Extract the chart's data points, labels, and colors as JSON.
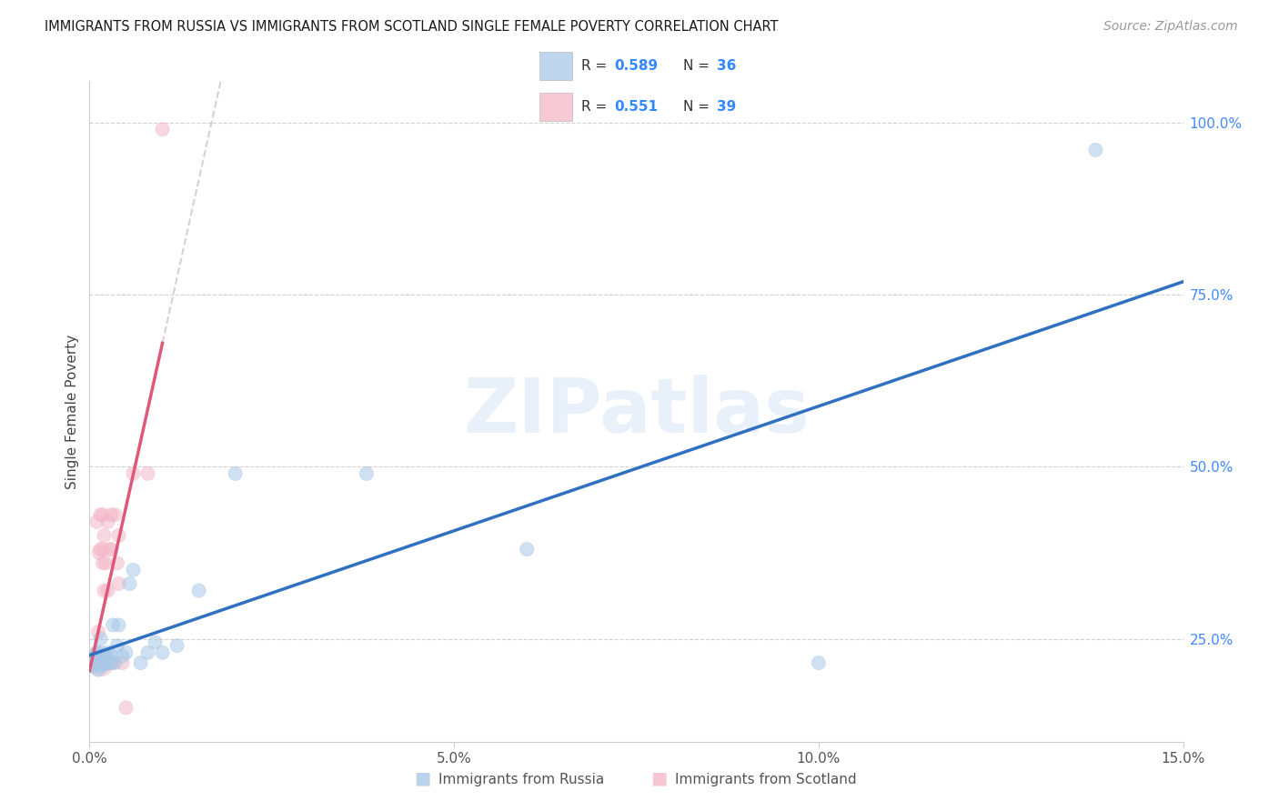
{
  "title": "IMMIGRANTS FROM RUSSIA VS IMMIGRANTS FROM SCOTLAND SINGLE FEMALE POVERTY CORRELATION CHART",
  "source": "Source: ZipAtlas.com",
  "ylabel": "Single Female Poverty",
  "xlim": [
    0.0,
    0.15
  ],
  "ylim": [
    0.1,
    1.06
  ],
  "russia_R": 0.589,
  "russia_N": 36,
  "scotland_R": 0.551,
  "scotland_N": 39,
  "russia_color": "#a8c8e8",
  "scotland_color": "#f4b8c8",
  "russia_line_color": "#3070c0",
  "scotland_line_color": "#e05878",
  "watermark": "ZIPatlas",
  "russia_x": [
    0.0005,
    0.0008,
    0.001,
    0.001,
    0.0012,
    0.0012,
    0.0015,
    0.0015,
    0.0015,
    0.0018,
    0.002,
    0.002,
    0.0022,
    0.0025,
    0.0025,
    0.0028,
    0.003,
    0.0032,
    0.0035,
    0.0038,
    0.004,
    0.0045,
    0.005,
    0.0055,
    0.006,
    0.007,
    0.008,
    0.009,
    0.01,
    0.012,
    0.015,
    0.02,
    0.038,
    0.06,
    0.1,
    0.138
  ],
  "russia_y": [
    0.21,
    0.215,
    0.22,
    0.23,
    0.205,
    0.215,
    0.215,
    0.22,
    0.25,
    0.215,
    0.215,
    0.225,
    0.215,
    0.215,
    0.23,
    0.215,
    0.225,
    0.27,
    0.215,
    0.24,
    0.27,
    0.225,
    0.23,
    0.33,
    0.35,
    0.215,
    0.23,
    0.245,
    0.23,
    0.24,
    0.32,
    0.49,
    0.49,
    0.38,
    0.215,
    0.96
  ],
  "russia_sizes": [
    120,
    120,
    120,
    120,
    120,
    120,
    120,
    450,
    120,
    120,
    120,
    120,
    120,
    120,
    120,
    120,
    120,
    120,
    120,
    120,
    120,
    120,
    120,
    120,
    120,
    120,
    120,
    120,
    120,
    120,
    120,
    120,
    120,
    120,
    120,
    120
  ],
  "scotland_x": [
    0.0005,
    0.0007,
    0.0008,
    0.001,
    0.001,
    0.001,
    0.0012,
    0.0012,
    0.0013,
    0.0015,
    0.0015,
    0.0015,
    0.0017,
    0.0018,
    0.0018,
    0.0018,
    0.002,
    0.002,
    0.002,
    0.0022,
    0.0022,
    0.0025,
    0.0025,
    0.0025,
    0.0028,
    0.0028,
    0.003,
    0.003,
    0.003,
    0.0032,
    0.0035,
    0.0038,
    0.004,
    0.004,
    0.0045,
    0.005,
    0.006,
    0.008,
    0.01
  ],
  "scotland_y": [
    0.215,
    0.215,
    0.215,
    0.215,
    0.23,
    0.42,
    0.215,
    0.26,
    0.375,
    0.38,
    0.43,
    0.215,
    0.215,
    0.36,
    0.38,
    0.43,
    0.215,
    0.32,
    0.4,
    0.215,
    0.36,
    0.215,
    0.32,
    0.42,
    0.215,
    0.38,
    0.215,
    0.38,
    0.43,
    0.215,
    0.43,
    0.36,
    0.33,
    0.4,
    0.215,
    0.15,
    0.49,
    0.49,
    0.99
  ],
  "scotland_sizes": [
    120,
    120,
    120,
    120,
    120,
    120,
    120,
    120,
    120,
    120,
    120,
    450,
    120,
    120,
    120,
    120,
    120,
    120,
    120,
    120,
    120,
    120,
    120,
    120,
    120,
    120,
    120,
    120,
    120,
    120,
    120,
    120,
    120,
    120,
    120,
    120,
    120,
    120,
    120
  ],
  "grid_color": "#cccccc",
  "bg_color": "#ffffff",
  "yticks_right": [
    0.25,
    0.5,
    0.75,
    1.0
  ],
  "ytick_labels_right": [
    "25.0%",
    "50.0%",
    "75.0%",
    "100.0%"
  ],
  "xticks": [
    0.0,
    0.05,
    0.1,
    0.15
  ],
  "xtick_labels": [
    "0.0%",
    "5.0%",
    "10.0%",
    "15.0%"
  ]
}
